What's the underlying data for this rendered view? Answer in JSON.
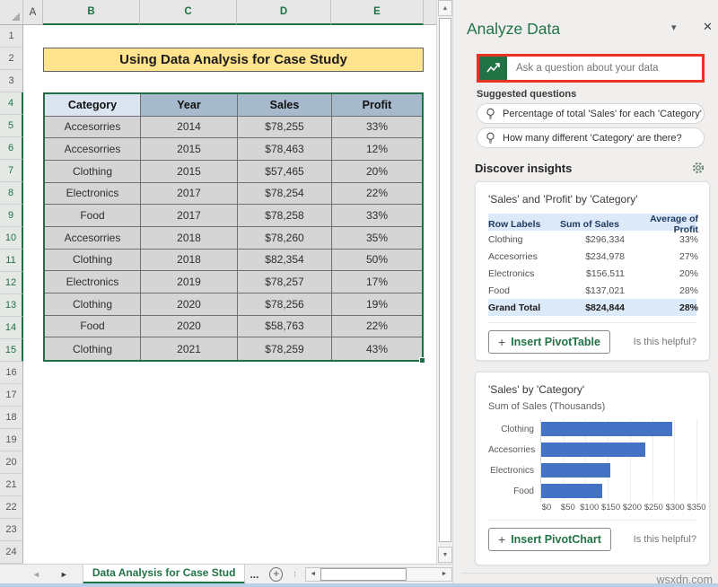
{
  "colors": {
    "excel_green": "#217346",
    "selection_green": "#1e7145",
    "highlight_red": "#ea3323",
    "bar_blue": "#4472c4",
    "banner_yellow": "#ffe48d"
  },
  "spreadsheet": {
    "column_letters": [
      "A",
      "B",
      "C",
      "D",
      "E"
    ],
    "selected_columns": [
      "B",
      "C",
      "D",
      "E"
    ],
    "row_count": 24,
    "selected_rows_from": 4,
    "selected_rows_to": 15,
    "title_banner": "Using Data Analysis for Case Study",
    "table": {
      "headers": [
        "Category",
        "Year",
        "Sales",
        "Profit"
      ],
      "rows": [
        [
          "Accesorries",
          "2014",
          "$78,255",
          "33%"
        ],
        [
          "Accesorries",
          "2015",
          "$78,463",
          "12%"
        ],
        [
          "Clothing",
          "2015",
          "$57,465",
          "20%"
        ],
        [
          "Electronics",
          "2017",
          "$78,254",
          "22%"
        ],
        [
          "Food",
          "2017",
          "$78,258",
          "33%"
        ],
        [
          "Accesorries",
          "2018",
          "$78,260",
          "35%"
        ],
        [
          "Clothing",
          "2018",
          "$82,354",
          "50%"
        ],
        [
          "Electronics",
          "2019",
          "$78,257",
          "17%"
        ],
        [
          "Clothing",
          "2020",
          "$78,256",
          "19%"
        ],
        [
          "Food",
          "2020",
          "$58,763",
          "22%"
        ],
        [
          "Clothing",
          "2021",
          "$78,259",
          "43%"
        ]
      ]
    },
    "tab_bar": {
      "prev_arrow": "◄",
      "next_arrow": "►",
      "sheet_name": "Data Analysis for Case Stud",
      "ellipsis": "...",
      "add_sheet": "+",
      "dots": "⁞"
    }
  },
  "panel": {
    "title": "Analyze Data",
    "chevron": "▾",
    "close": "✕",
    "search": {
      "placeholder": "Ask a question about your data"
    },
    "suggested_label": "Suggested questions",
    "questions": [
      {
        "text": "Percentage of total 'Sales' for each 'Category'"
      },
      {
        "text": "How many different 'Category' are there?"
      }
    ],
    "discover_label": "Discover insights",
    "pivot_card": {
      "title": "'Sales' and 'Profit' by 'Category'",
      "columns": [
        "Row Labels",
        "Sum of Sales",
        "Average of Profit"
      ],
      "rows": [
        [
          "Clothing",
          "$296,334",
          "33%"
        ],
        [
          "Accesorries",
          "$234,978",
          "27%"
        ],
        [
          "Electronics",
          "$156,511",
          "20%"
        ],
        [
          "Food",
          "$137,021",
          "28%"
        ]
      ],
      "total_row": [
        "Grand Total",
        "$824,844",
        "28%"
      ],
      "insert_label": "Insert PivotTable",
      "helpful_label": "Is this helpful?"
    },
    "chart_card": {
      "insert_label": "Insert PivotChart",
      "helpful_label": "Is this helpful?"
    }
  },
  "chart_data": {
    "type": "bar",
    "orientation": "horizontal",
    "title": "'Sales' by 'Category'",
    "subtitle": "Sum of Sales (Thousands)",
    "categories": [
      "Clothing",
      "Accesorries",
      "Electronics",
      "Food"
    ],
    "values": [
      296.334,
      234.978,
      156.511,
      137.021
    ],
    "xlim": [
      0,
      350
    ],
    "tick_labels": [
      "$0",
      "$50",
      "$100",
      "$150",
      "$200",
      "$250",
      "$300",
      "$350"
    ],
    "bar_color": "#4472c4",
    "grid": true,
    "legend": false
  },
  "watermark": "wsxdn.com"
}
